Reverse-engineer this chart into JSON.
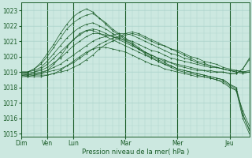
{
  "title": "",
  "xlabel": "Pression niveau de la mer( hPa )",
  "ylim": [
    1014.8,
    1023.5
  ],
  "yticks": [
    1015,
    1016,
    1017,
    1018,
    1019,
    1020,
    1021,
    1022,
    1023
  ],
  "background_color": "#cce8e0",
  "grid_minor_color": "#aed4cc",
  "grid_major_color": "#aed4cc",
  "line_color": "#1a5c28",
  "day_labels": [
    "Dim",
    "Ven",
    "Lun",
    "Mar",
    "Mer",
    "Jeu"
  ],
  "day_positions": [
    0,
    24,
    48,
    96,
    144,
    192
  ],
  "total_hours": 210,
  "series": [
    [
      1018.7,
      1018.7,
      1018.8,
      1018.8,
      1018.8,
      1018.9,
      1019.0,
      1019.1,
      1019.3,
      1019.5,
      1019.8,
      1020.1,
      1020.5,
      1020.8,
      1021.0,
      1021.2,
      1021.4,
      1021.5,
      1021.4,
      1021.2,
      1021.0,
      1020.8,
      1020.7,
      1020.5,
      1020.3,
      1020.1,
      1019.9,
      1019.7,
      1019.6,
      1019.4,
      1019.3,
      1019.2,
      1019.1,
      1019.0,
      1018.9,
      1019.0
    ],
    [
      1018.8,
      1018.8,
      1018.9,
      1018.9,
      1019.0,
      1019.1,
      1019.2,
      1019.4,
      1019.6,
      1019.9,
      1020.2,
      1020.5,
      1020.8,
      1021.0,
      1021.2,
      1021.3,
      1021.5,
      1021.6,
      1021.5,
      1021.3,
      1021.1,
      1020.9,
      1020.7,
      1020.5,
      1020.4,
      1020.2,
      1020.0,
      1019.9,
      1019.7,
      1019.6,
      1019.5,
      1019.3,
      1019.2,
      1019.1,
      1019.0,
      1019.0
    ],
    [
      1018.8,
      1018.8,
      1018.9,
      1019.0,
      1019.1,
      1019.3,
      1019.5,
      1019.8,
      1020.1,
      1020.4,
      1020.7,
      1021.0,
      1021.2,
      1021.3,
      1021.4,
      1021.5,
      1021.5,
      1021.4,
      1021.2,
      1021.0,
      1020.8,
      1020.6,
      1020.4,
      1020.2,
      1020.1,
      1019.9,
      1019.8,
      1019.6,
      1019.5,
      1019.4,
      1019.3,
      1019.2,
      1019.1,
      1019.0,
      1019.0,
      1019.1
    ],
    [
      1018.9,
      1018.9,
      1019.0,
      1019.1,
      1019.3,
      1019.6,
      1019.9,
      1020.3,
      1020.7,
      1021.0,
      1021.3,
      1021.5,
      1021.5,
      1021.4,
      1021.3,
      1021.2,
      1021.1,
      1021.0,
      1020.8,
      1020.6,
      1020.4,
      1020.3,
      1020.1,
      1019.9,
      1019.8,
      1019.7,
      1019.6,
      1019.5,
      1019.4,
      1019.3,
      1019.3,
      1019.2,
      1019.1,
      1019.1,
      1019.0,
      1019.0
    ],
    [
      1019.0,
      1018.9,
      1019.0,
      1019.2,
      1019.5,
      1019.9,
      1020.3,
      1020.7,
      1021.1,
      1021.4,
      1021.7,
      1021.8,
      1021.7,
      1021.5,
      1021.3,
      1021.1,
      1020.9,
      1020.7,
      1020.5,
      1020.3,
      1020.1,
      1019.9,
      1019.8,
      1019.6,
      1019.5,
      1019.4,
      1019.3,
      1019.2,
      1019.1,
      1019.1,
      1019.0,
      1019.0,
      1018.9,
      1018.9,
      1019.2,
      1019.8
    ],
    [
      1019.0,
      1019.0,
      1019.1,
      1019.3,
      1019.7,
      1020.2,
      1020.7,
      1021.2,
      1021.6,
      1021.9,
      1022.1,
      1022.2,
      1022.0,
      1021.8,
      1021.5,
      1021.2,
      1021.0,
      1020.8,
      1020.5,
      1020.3,
      1020.1,
      1019.9,
      1019.7,
      1019.6,
      1019.4,
      1019.3,
      1019.2,
      1019.1,
      1019.1,
      1019.0,
      1019.0,
      1019.0,
      1018.9,
      1018.9,
      1019.2,
      1019.9
    ],
    [
      1019.0,
      1019.0,
      1019.2,
      1019.5,
      1020.0,
      1020.6,
      1021.2,
      1021.8,
      1022.2,
      1022.5,
      1022.7,
      1022.8,
      1022.5,
      1022.2,
      1021.8,
      1021.5,
      1021.2,
      1020.9,
      1020.6,
      1020.3,
      1020.0,
      1019.8,
      1019.6,
      1019.4,
      1019.2,
      1019.1,
      1019.0,
      1018.9,
      1018.8,
      1018.7,
      1018.6,
      1018.5,
      1018.2,
      1018.0,
      1016.3,
      1015.2
    ],
    [
      1019.0,
      1019.0,
      1019.2,
      1019.6,
      1020.2,
      1020.8,
      1021.5,
      1022.1,
      1022.6,
      1022.9,
      1023.1,
      1022.9,
      1022.5,
      1022.1,
      1021.7,
      1021.4,
      1021.1,
      1020.8,
      1020.5,
      1020.2,
      1019.9,
      1019.7,
      1019.5,
      1019.3,
      1019.1,
      1019.0,
      1018.9,
      1018.8,
      1018.7,
      1018.6,
      1018.5,
      1018.3,
      1018.0,
      1017.8,
      1016.0,
      1015.0
    ],
    [
      1018.9,
      1018.8,
      1018.8,
      1018.9,
      1019.1,
      1019.5,
      1020.0,
      1020.6,
      1021.1,
      1021.5,
      1021.7,
      1021.7,
      1021.5,
      1021.3,
      1021.1,
      1020.9,
      1020.7,
      1020.5,
      1020.3,
      1020.1,
      1019.9,
      1019.7,
      1019.5,
      1019.4,
      1019.2,
      1019.1,
      1019.0,
      1018.9,
      1018.8,
      1018.7,
      1018.6,
      1018.5,
      1018.2,
      1017.9,
      1016.2,
      1015.3
    ],
    [
      1018.8,
      1018.7,
      1018.7,
      1018.7,
      1018.8,
      1018.9,
      1019.1,
      1019.4,
      1019.7,
      1020.0,
      1020.3,
      1020.5,
      1020.6,
      1020.6,
      1020.5,
      1020.4,
      1020.3,
      1020.1,
      1019.9,
      1019.7,
      1019.5,
      1019.4,
      1019.2,
      1019.1,
      1019.0,
      1018.9,
      1018.8,
      1018.7,
      1018.7,
      1018.6,
      1018.5,
      1018.4,
      1018.1,
      1017.8,
      1016.5,
      1015.5
    ]
  ]
}
